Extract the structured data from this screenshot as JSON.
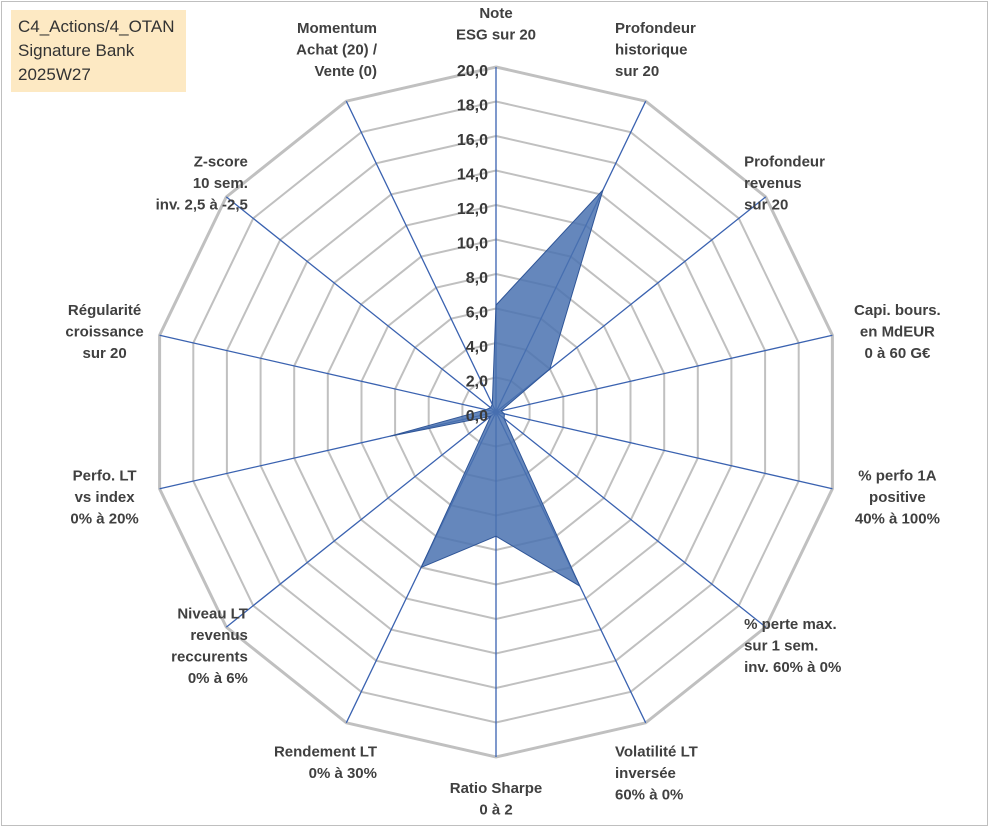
{
  "header": {
    "lines": [
      "C4_Actions/4_OTAN",
      "Signature Bank",
      "2025W27"
    ]
  },
  "colors": {
    "grid": "#c0c0c0",
    "spoke": "#3a62b0",
    "fill": "#4a72b0",
    "stroke": "#2f5597"
  },
  "chart_data": {
    "type": "radar",
    "title": "",
    "rlim": [
      0,
      20
    ],
    "r_ticks": [
      "0,0",
      "2,0",
      "4,0",
      "6,0",
      "8,0",
      "10,0",
      "12,0",
      "14,0",
      "16,0",
      "18,0",
      "20,0"
    ],
    "grid": true,
    "axes": [
      {
        "label": [
          "Note",
          "ESG sur 20"
        ]
      },
      {
        "label": [
          "Profondeur",
          "historique",
          "sur 20"
        ]
      },
      {
        "label": [
          "Profondeur",
          "revenus",
          "sur 20"
        ]
      },
      {
        "label": [
          "Capi. bours.",
          "en MdEUR",
          "0 à 60 G€"
        ]
      },
      {
        "label": [
          "% perfo 1A",
          "positive",
          "40% à 100%"
        ]
      },
      {
        "label": [
          "% perte max.",
          "sur 1 sem.",
          "inv. 60% à 0%"
        ]
      },
      {
        "label": [
          "Volatilité LT",
          "inversée",
          "60% à 0%"
        ]
      },
      {
        "label": [
          "Ratio Sharpe",
          "0 à 2"
        ]
      },
      {
        "label": [
          "Rendement LT",
          "0% à 30%"
        ]
      },
      {
        "label": [
          "Niveau LT",
          "revenus",
          "reccurents",
          "0% à 6%"
        ]
      },
      {
        "label": [
          "Perfo. LT",
          "vs index",
          "0% à 20%"
        ]
      },
      {
        "label": [
          "Régularité",
          "croissance",
          "sur 20"
        ]
      },
      {
        "label": [
          "Z-score",
          "10 sem.",
          "inv. 2,5 à -2,5"
        ]
      },
      {
        "label": [
          "Momentum",
          "Achat (20) /",
          "Vente (0)"
        ]
      }
    ],
    "series": [
      {
        "values": [
          6.2,
          14.3,
          4.0,
          0.3,
          0.5,
          0.6,
          11.2,
          7.2,
          10.0,
          0.4,
          6.3,
          0.6,
          0.4,
          0.5
        ]
      }
    ]
  }
}
